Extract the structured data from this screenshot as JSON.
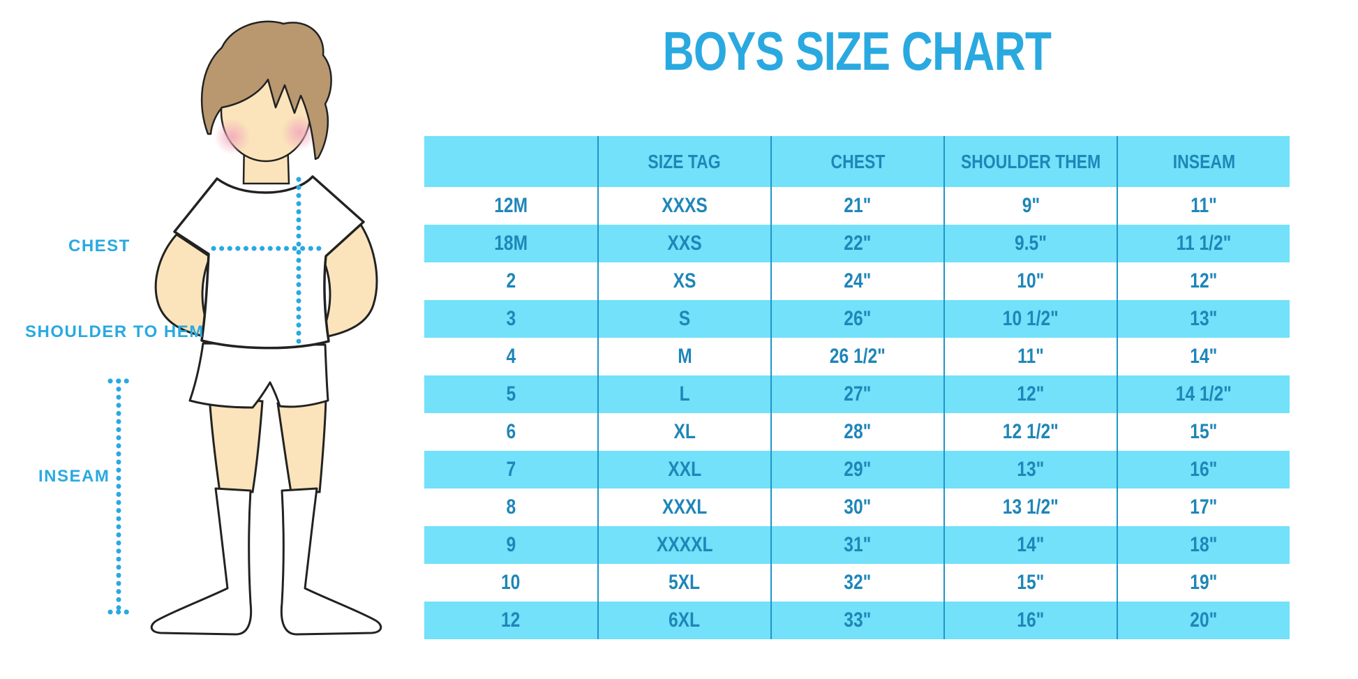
{
  "title": "BOYS SIZE CHART",
  "figure": {
    "labels": {
      "chest": "CHEST",
      "shoulder_to_hem": "SHOULDER TO HEM",
      "inseam": "INSEAM"
    }
  },
  "colors": {
    "accent": "#29A9E0",
    "band": "#72E1F9",
    "tabletext": "#1E86B8",
    "grid": "#2095C8",
    "skin": "#FBE4BB",
    "hair": "#B9986F",
    "cheek": "#F2A9BE",
    "outline": "#222222"
  },
  "chart_data": {
    "type": "table",
    "title": "BOYS SIZE CHART",
    "columns": [
      "",
      "SIZE TAG",
      "CHEST",
      "SHOULDER THEM",
      "INSEAM"
    ],
    "rows": [
      [
        "12M",
        "XXXS",
        "21\"",
        "9\"",
        "11\""
      ],
      [
        "18M",
        "XXS",
        "22\"",
        "9.5\"",
        "11 1/2\""
      ],
      [
        "2",
        "XS",
        "24\"",
        "10\"",
        "12\""
      ],
      [
        "3",
        "S",
        "26\"",
        "10 1/2\"",
        "13\""
      ],
      [
        "4",
        "M",
        "26 1/2\"",
        "11\"",
        "14\""
      ],
      [
        "5",
        "L",
        "27\"",
        "12\"",
        "14 1/2\""
      ],
      [
        "6",
        "XL",
        "28\"",
        "12 1/2\"",
        "15\""
      ],
      [
        "7",
        "XXL",
        "29\"",
        "13\"",
        "16\""
      ],
      [
        "8",
        "XXXL",
        "30\"",
        "13 1/2\"",
        "17\""
      ],
      [
        "9",
        "XXXXL",
        "31\"",
        "14\"",
        "18\""
      ],
      [
        "10",
        "5XL",
        "32\"",
        "15\"",
        "19\""
      ],
      [
        "12",
        "6XL",
        "33\"",
        "16\"",
        "20\""
      ]
    ],
    "layout": {
      "header_background": "#72E1F9",
      "alternating_rows": true,
      "grid": "vertical-only"
    }
  }
}
